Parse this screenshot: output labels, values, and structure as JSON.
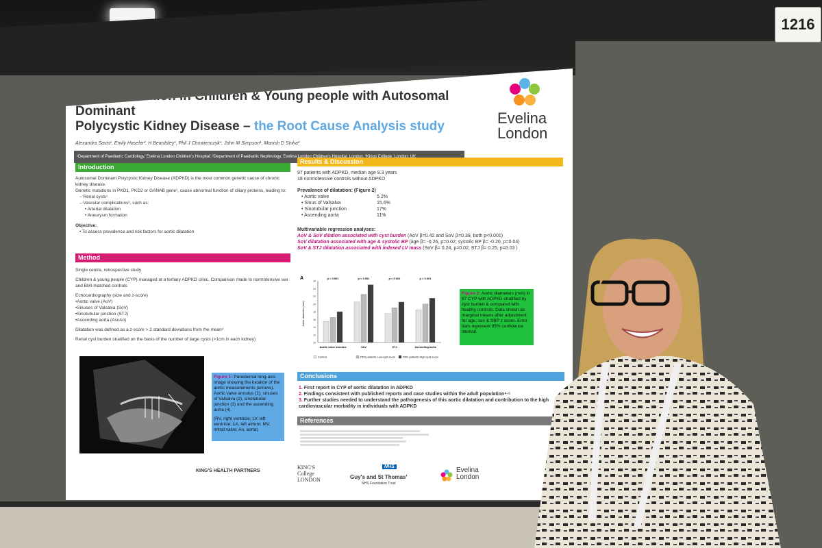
{
  "booth_number": "1216",
  "poster": {
    "title_line1": "Aortic Dilatation in Children & Young people with Autosomal Dominant",
    "title_line2": "Polycystic Kidney Disease –",
    "title_highlight": "the Root Cause Analysis study",
    "authors": "Alexandra Savis¹, Emily Haseler², H Beardsley¹, Phil J Chowienczyk³, John M Simpson¹, Manish D Sinha²",
    "affiliations": "¹Department of Paediatric Cardiology, Evelina London Children's Hospital; ²Department of Paediatric Nephrology, Evelina London Children's Hospital, London, ³Kings College, London, UK",
    "logo_line1": "Evelina",
    "logo_line2": "London",
    "introduction": {
      "heading": "Introduction",
      "p1": "Autosomal Dominant Polycystic Kidney Disease (ADPKD) is the most common genetic cause of chronic kidney disease.",
      "p2": "Genetic mutations in PKD1, PKD2 or GANAB gene¹, cause abnormal function of ciliary proteins, leading to:",
      "b1": "– Renal cysts¹",
      "b2": "– Vascular complications², such as:",
      "b3": "• Arterial dilatation",
      "b4": "• Aneurysm formation",
      "objective_label": "Objective:",
      "objective": "• To assess prevalence and risk factors for aortic dilatation"
    },
    "method": {
      "heading": "Method",
      "m1": "Single centre, retrospective study",
      "m2": "Children & young people (CYP) managed at a tertiary ADPKD clinic. Comparison made to normotensive sex and BMI-matched controls",
      "m3": "Echocardiography (size and z-score)",
      "m4": "•Aortic valve (AoV)",
      "m5": "•Sinuses of Valsalva (SoV)",
      "m6": "•Sinotubular junction (STJ)",
      "m7": "•Ascending aorta (AscAo)",
      "m8": "Dilatation was defined as a z-score > 2 standard deviations from the mean³",
      "m9": "Renal cyst burden stratified on the basis of the number of large cysts (>1cm in each kidney)"
    },
    "figure1_caption_label": "Figure 1:",
    "figure1_caption": "Parasternal long-axis image showing the location of the aortic measurements (arrows). Aortic valve annulus (1); sinuses of Valsalva (2), sinotubular junction (3) and the ascending aorta (4).",
    "figure1_caption2": "(RV, right ventricle; LV, left ventricle; LA, left atrium; MV, mitral valve; Ao, aorta)",
    "results": {
      "heading": "Results & Discussion",
      "r1": "97 patients with ADPKD, median age 9.3 years",
      "r2": "18 normotensive controls without ADPKD",
      "prev_label": "Prevalence of dilatation: (Figure 2)",
      "prev": [
        {
          "name": "Aortic valve",
          "value": "5.2%"
        },
        {
          "name": "Sinus of Valsalva",
          "value": "15.6%"
        },
        {
          "name": "Sinotubular junction",
          "value": "17%"
        },
        {
          "name": "Ascending aorta",
          "value": "11%"
        }
      ],
      "mv_label": "Multivariable regression analyses:",
      "mv1a": "AoV & SoV dilation associated with cyst burden",
      "mv1b": "(AoV β=0.42 and SoV β=0.39, both p<0.001)",
      "mv2a": "SoV dilatation associated with age & systolic BP",
      "mv2b": "(age β= -0.26, p=0.02; systolic BP β= -0.20, p=0.04)",
      "mv3a": "SoV & STJ dilatation associated with indexed LV mass",
      "mv3b": "(SoV β= 0.24, p=0.02; STJ β= 0.25, p=0.03 )"
    },
    "figure2_caption_label": "Figure 2:",
    "figure2_caption": "Aortic diameters (mm) in 97 CYP with ADPKD stratified by cyst burden & compared with healthy controls. Data shown as marginal means after adjustment for age, sex & SBP z score. Error bars represent 95% confidence interval.",
    "conclusions": {
      "heading": "Conclusions",
      "c1": "First report in CYP of aortic dilatation in ADPKD",
      "c2": "Findings consistent with published reports and case studies within the adult population⁴·⁵",
      "c3": "Further studies needed to understand the pathogenesis of this aortic dilatation and contribution to the high cardiovascular morbidity in individuals with ADPKD"
    },
    "references_heading": "References",
    "footer": {
      "khp": "KING'S HEALTH PARTNERS",
      "kings": "KING'S College LONDON",
      "nhs": "NHS",
      "gst": "Guy's and St Thomas'",
      "gst_sub": "NHS Foundation Trust",
      "ev1": "Evelina",
      "ev2": "London"
    },
    "colors": {
      "intro": "#3aaa35",
      "method": "#d81b73",
      "results": "#f2b81b",
      "conclusions": "#4ea3df",
      "references": "#7a7a7a"
    }
  },
  "chart_data": {
    "type": "bar",
    "panel_label": "A",
    "ylabel": "Aortic diameter (mm)",
    "ylim": [
      10,
      26
    ],
    "categories": [
      "Aortic valve annulus",
      "SoV",
      "STJ",
      "Ascending aorta"
    ],
    "pvalues": [
      "p < 0.001",
      "p < 0.001",
      "p < 0.001",
      "p < 0.001"
    ],
    "series": [
      {
        "name": "Control",
        "values": [
          15.5,
          20.5,
          17.5,
          18.5
        ]
      },
      {
        "name": "PKD patients Low-cyst score",
        "values": [
          16.5,
          22.5,
          19,
          20
        ]
      },
      {
        "name": "PKD patients High-cyst score",
        "values": [
          18,
          25,
          20.5,
          21.5
        ]
      }
    ]
  }
}
